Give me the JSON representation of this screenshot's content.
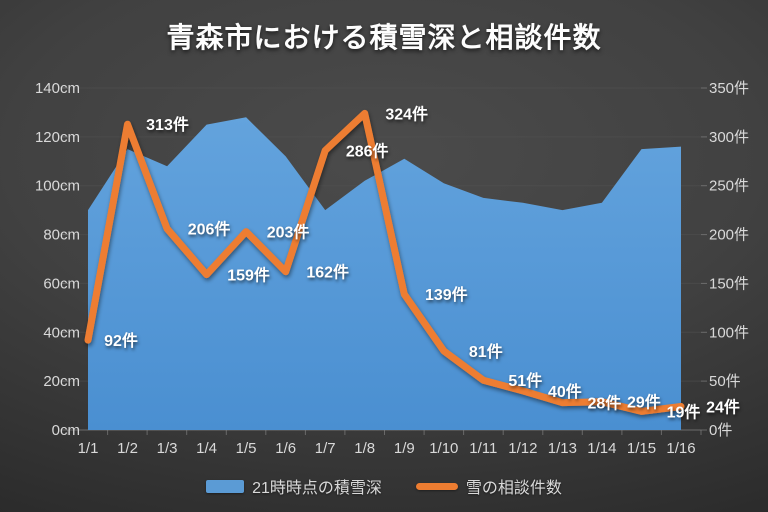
{
  "title": "青森市における積雪深と相談件数",
  "chart_data": {
    "type": "combo",
    "title": "青森市における積雪深と相談件数",
    "categories": [
      "1/1",
      "1/2",
      "1/3",
      "1/4",
      "1/5",
      "1/6",
      "1/7",
      "1/8",
      "1/9",
      "1/10",
      "1/11",
      "1/12",
      "1/13",
      "1/14",
      "1/15",
      "1/16"
    ],
    "series": [
      {
        "name": "21時時点の積雪深",
        "chart_type": "area",
        "axis": "left",
        "unit": "cm",
        "color": "#5B9BD5",
        "values": [
          90,
          115,
          108,
          125,
          128,
          112,
          90,
          102,
          111,
          101,
          95,
          93,
          90,
          93,
          115,
          116
        ]
      },
      {
        "name": "雪の相談件数",
        "chart_type": "line",
        "axis": "right",
        "unit": "件",
        "color": "#ED7D31",
        "values": [
          92,
          313,
          206,
          159,
          203,
          162,
          286,
          324,
          139,
          81,
          51,
          40,
          28,
          29,
          19,
          24
        ],
        "data_labels": [
          "92件",
          "313件",
          "206件",
          "159件",
          "203件",
          "162件",
          "286件",
          "324件",
          "139件",
          "81件",
          "51件",
          "40件",
          "28件",
          "29件",
          "19件",
          "24件"
        ]
      }
    ],
    "left_axis": {
      "min": 0,
      "max": 140,
      "step": 20,
      "tick_labels": [
        "0cm",
        "20cm",
        "40cm",
        "60cm",
        "80cm",
        "100cm",
        "120cm",
        "140cm"
      ]
    },
    "right_axis": {
      "min": 0,
      "max": 350,
      "step": 50,
      "tick_labels": [
        "0件",
        "50件",
        "100件",
        "150件",
        "200件",
        "250件",
        "300件",
        "350件"
      ]
    },
    "grid": true,
    "legend_position": "bottom"
  },
  "colors": {
    "background_top": "#4b4b4b",
    "background_bottom": "#1e1e1e",
    "grid": "#525252",
    "axis_text": "#d9d9d9",
    "data_label": "#ffffff",
    "area_fill_top": "#63A3DD",
    "area_fill_bottom": "#4A8FD1",
    "line": "#ED7D31"
  }
}
